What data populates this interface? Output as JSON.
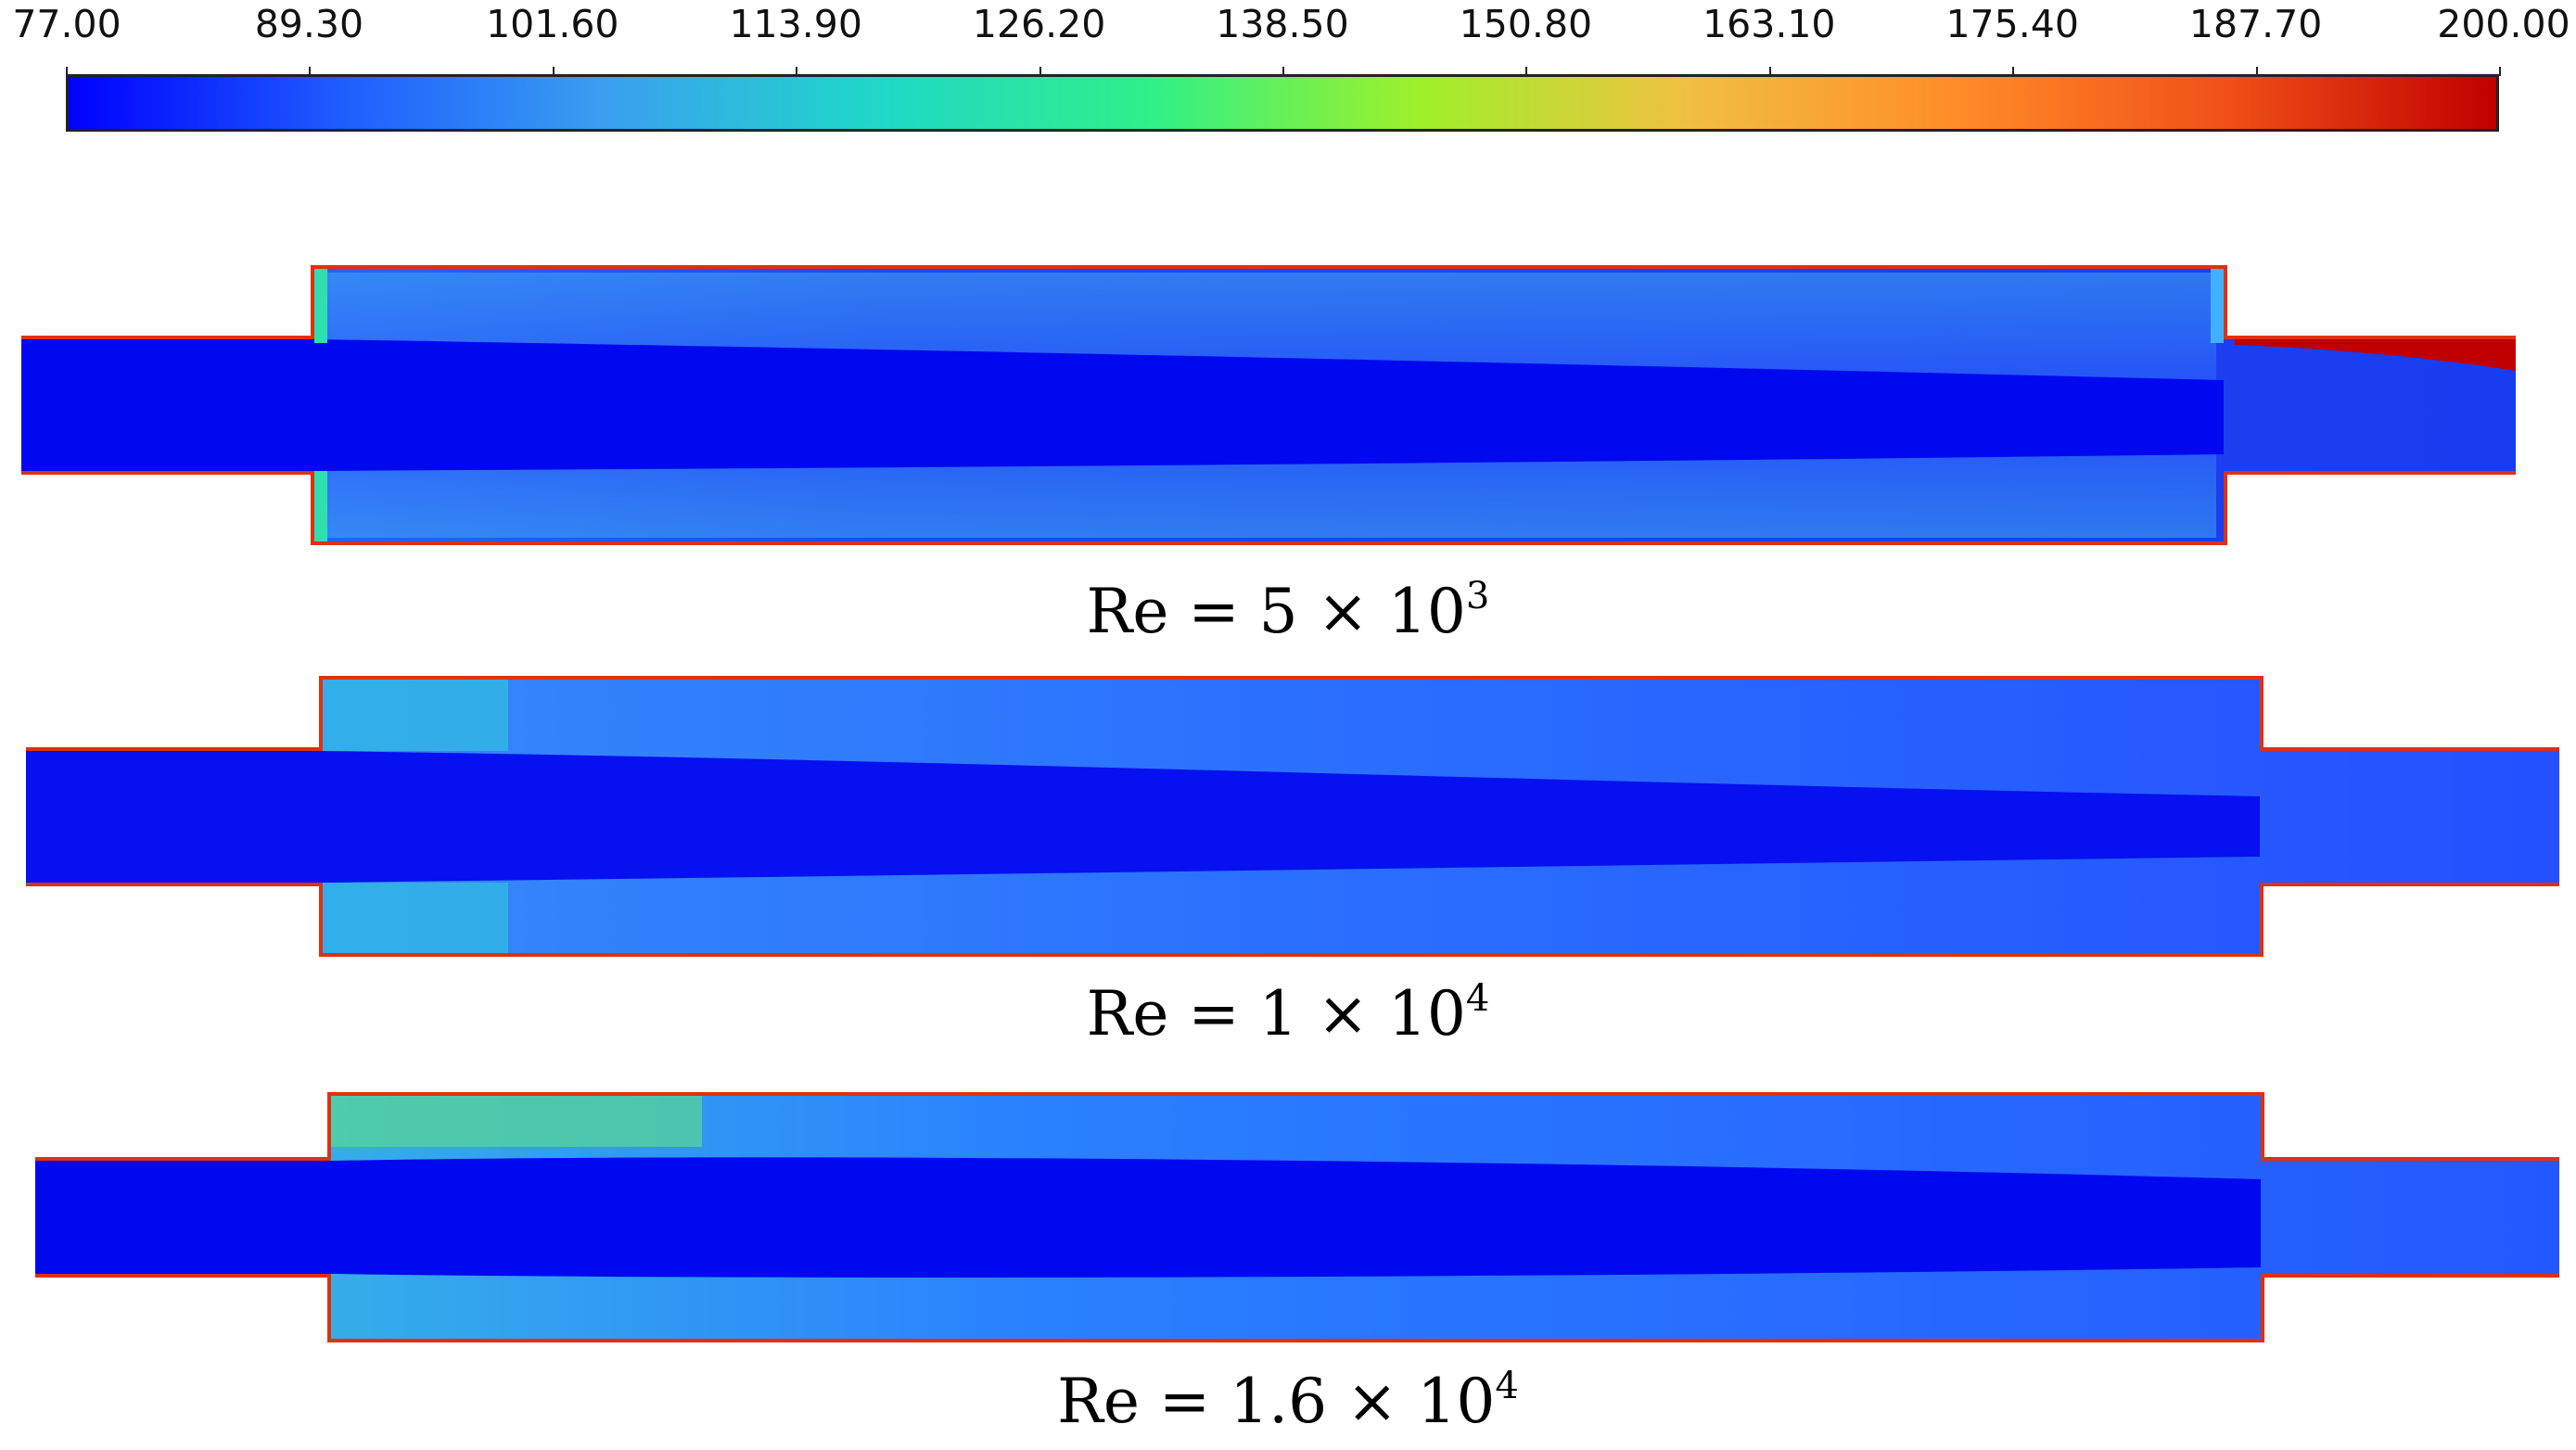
{
  "colorbar": {
    "ticks": [
      "77.00",
      "89.30",
      "101.60",
      "113.90",
      "126.20",
      "138.50",
      "150.80",
      "163.10",
      "175.40",
      "187.70",
      "200.00"
    ],
    "colors": [
      "#0000ff",
      "#1e5cff",
      "#3aa0f0",
      "#1fd8c8",
      "#2ef08a",
      "#9ef02a",
      "#f0c040",
      "#ff8c28",
      "#f05018",
      "#c00000"
    ]
  },
  "panels": [
    {
      "label_main": "Re = 5 × 10",
      "label_exp": "3"
    },
    {
      "label_main": "Re = 1 × 10",
      "label_exp": "4"
    },
    {
      "label_main": "Re = 1.6 × 10",
      "label_exp": "4"
    }
  ]
}
